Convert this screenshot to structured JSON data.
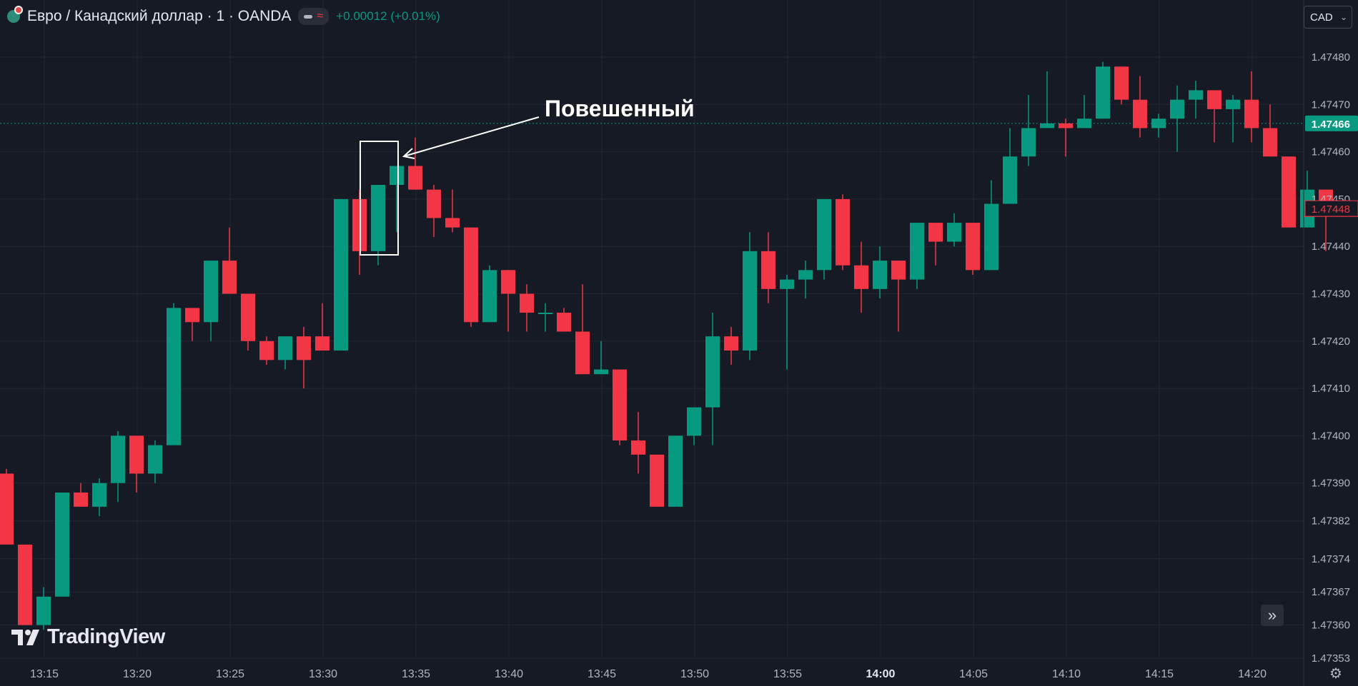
{
  "header": {
    "symbol_icon": "eur-cad-flag-icon",
    "symbol_title": "Евро / Канадский доллар · 1 · OANDA",
    "change": "+0.00012 (+0.01%)"
  },
  "currency_selector": {
    "label": "CAD"
  },
  "logo": {
    "text": "TradingView"
  },
  "colors": {
    "up": "#089981",
    "down": "#f23645",
    "background": "#161a25",
    "grid": "#232733"
  },
  "chart_data": {
    "type": "candlestick",
    "price_axis": {
      "ticks": [
        "1.47480",
        "1.47470",
        "1.47460",
        "1.47450",
        "1.47440",
        "1.47430",
        "1.47420",
        "1.47410",
        "1.47400",
        "1.47390",
        "1.47382",
        "1.47374",
        "1.47367",
        "1.47360",
        "1.47353"
      ],
      "last_price": "1.47466",
      "marker_price": "1.47448"
    },
    "time_axis": {
      "ticks": [
        "13:15",
        "13:20",
        "13:25",
        "13:30",
        "13:35",
        "13:40",
        "13:45",
        "13:50",
        "13:55",
        "14:00",
        "14:05",
        "14:10",
        "14:15",
        "14:20"
      ],
      "bold_tick": "14:00"
    },
    "annotation": {
      "text": "Повешенный",
      "target_time": "13:34"
    },
    "candles": [
      {
        "t": "13:13",
        "o": 1.47392,
        "h": 1.47393,
        "l": 1.47378,
        "c": 1.47377
      },
      {
        "t": "13:14",
        "o": 1.47377,
        "h": 1.47377,
        "l": 1.4736,
        "c": 1.4736
      },
      {
        "t": "13:15",
        "o": 1.4736,
        "h": 1.47368,
        "l": 1.47359,
        "c": 1.47366
      },
      {
        "t": "13:16",
        "o": 1.47366,
        "h": 1.47388,
        "l": 1.47366,
        "c": 1.47388
      },
      {
        "t": "13:17",
        "o": 1.47388,
        "h": 1.4739,
        "l": 1.47385,
        "c": 1.47385
      },
      {
        "t": "13:18",
        "o": 1.47385,
        "h": 1.47391,
        "l": 1.47383,
        "c": 1.4739
      },
      {
        "t": "13:19",
        "o": 1.4739,
        "h": 1.47401,
        "l": 1.47386,
        "c": 1.474
      },
      {
        "t": "13:20",
        "o": 1.474,
        "h": 1.474,
        "l": 1.47388,
        "c": 1.47392
      },
      {
        "t": "13:21",
        "o": 1.47392,
        "h": 1.47399,
        "l": 1.4739,
        "c": 1.47398
      },
      {
        "t": "13:22",
        "o": 1.47398,
        "h": 1.47428,
        "l": 1.47398,
        "c": 1.47427
      },
      {
        "t": "13:23",
        "o": 1.47427,
        "h": 1.47427,
        "l": 1.4742,
        "c": 1.47424
      },
      {
        "t": "13:24",
        "o": 1.47424,
        "h": 1.47437,
        "l": 1.4742,
        "c": 1.47437
      },
      {
        "t": "13:25",
        "o": 1.47437,
        "h": 1.47444,
        "l": 1.4743,
        "c": 1.4743
      },
      {
        "t": "13:26",
        "o": 1.4743,
        "h": 1.4743,
        "l": 1.47418,
        "c": 1.4742
      },
      {
        "t": "13:27",
        "o": 1.4742,
        "h": 1.47421,
        "l": 1.47415,
        "c": 1.47416
      },
      {
        "t": "13:28",
        "o": 1.47416,
        "h": 1.47421,
        "l": 1.47414,
        "c": 1.47421
      },
      {
        "t": "13:29",
        "o": 1.47421,
        "h": 1.47423,
        "l": 1.4741,
        "c": 1.47416
      },
      {
        "t": "13:30",
        "o": 1.47421,
        "h": 1.47428,
        "l": 1.47418,
        "c": 1.47418
      },
      {
        "t": "13:31",
        "o": 1.47418,
        "h": 1.4745,
        "l": 1.47418,
        "c": 1.4745
      },
      {
        "t": "13:32",
        "o": 1.4745,
        "h": 1.47452,
        "l": 1.47434,
        "c": 1.47439
      },
      {
        "t": "13:33",
        "o": 1.47439,
        "h": 1.47453,
        "l": 1.47436,
        "c": 1.47453
      },
      {
        "t": "13:34a",
        "o": 1.47453,
        "h": 1.47457,
        "l": 1.47443,
        "c": 1.47457
      },
      {
        "t": "13:34",
        "o": 1.47457,
        "h": 1.47463,
        "l": 1.47452,
        "c": 1.47452
      },
      {
        "t": "13:35",
        "o": 1.47452,
        "h": 1.47453,
        "l": 1.47442,
        "c": 1.47446
      },
      {
        "t": "13:36",
        "o": 1.47446,
        "h": 1.47452,
        "l": 1.47443,
        "c": 1.47444
      },
      {
        "t": "13:37",
        "o": 1.47444,
        "h": 1.47444,
        "l": 1.47423,
        "c": 1.47424
      },
      {
        "t": "13:38",
        "o": 1.47424,
        "h": 1.47436,
        "l": 1.47424,
        "c": 1.47435
      },
      {
        "t": "13:39",
        "o": 1.47435,
        "h": 1.47435,
        "l": 1.47422,
        "c": 1.4743
      },
      {
        "t": "13:40",
        "o": 1.4743,
        "h": 1.47432,
        "l": 1.47422,
        "c": 1.47426
      },
      {
        "t": "13:41",
        "o": 1.47426,
        "h": 1.47428,
        "l": 1.47422,
        "c": 1.47426
      },
      {
        "t": "13:42",
        "o": 1.47426,
        "h": 1.47427,
        "l": 1.47422,
        "c": 1.47422
      },
      {
        "t": "13:43",
        "o": 1.47422,
        "h": 1.47432,
        "l": 1.47413,
        "c": 1.47413
      },
      {
        "t": "13:44",
        "o": 1.47413,
        "h": 1.4742,
        "l": 1.47413,
        "c": 1.47414
      },
      {
        "t": "13:45",
        "o": 1.47414,
        "h": 1.47414,
        "l": 1.47398,
        "c": 1.47399
      },
      {
        "t": "13:46",
        "o": 1.47399,
        "h": 1.47405,
        "l": 1.47392,
        "c": 1.47396
      },
      {
        "t": "13:47",
        "o": 1.47396,
        "h": 1.47396,
        "l": 1.47385,
        "c": 1.47385
      },
      {
        "t": "13:48",
        "o": 1.47385,
        "h": 1.474,
        "l": 1.47385,
        "c": 1.474
      },
      {
        "t": "13:49",
        "o": 1.474,
        "h": 1.47406,
        "l": 1.47398,
        "c": 1.47406
      },
      {
        "t": "13:50",
        "o": 1.47406,
        "h": 1.47426,
        "l": 1.47398,
        "c": 1.47421
      },
      {
        "t": "13:51",
        "o": 1.47421,
        "h": 1.47423,
        "l": 1.47415,
        "c": 1.47418
      },
      {
        "t": "13:52",
        "o": 1.47418,
        "h": 1.47443,
        "l": 1.47416,
        "c": 1.47439
      },
      {
        "t": "13:53",
        "o": 1.47439,
        "h": 1.47443,
        "l": 1.47428,
        "c": 1.47431
      },
      {
        "t": "13:54",
        "o": 1.47431,
        "h": 1.47434,
        "l": 1.47414,
        "c": 1.47433
      },
      {
        "t": "13:55",
        "o": 1.47433,
        "h": 1.47437,
        "l": 1.47429,
        "c": 1.47435
      },
      {
        "t": "13:56",
        "o": 1.47435,
        "h": 1.4745,
        "l": 1.47433,
        "c": 1.4745
      },
      {
        "t": "13:57",
        "o": 1.4745,
        "h": 1.47451,
        "l": 1.47435,
        "c": 1.47436
      },
      {
        "t": "13:58",
        "o": 1.47436,
        "h": 1.47441,
        "l": 1.47426,
        "c": 1.47431
      },
      {
        "t": "13:59",
        "o": 1.47431,
        "h": 1.4744,
        "l": 1.47429,
        "c": 1.47437
      },
      {
        "t": "14:00",
        "o": 1.47437,
        "h": 1.47437,
        "l": 1.47422,
        "c": 1.47433
      },
      {
        "t": "14:01",
        "o": 1.47433,
        "h": 1.47445,
        "l": 1.47431,
        "c": 1.47445
      },
      {
        "t": "14:02",
        "o": 1.47445,
        "h": 1.47445,
        "l": 1.47436,
        "c": 1.47441
      },
      {
        "t": "14:03",
        "o": 1.47441,
        "h": 1.47447,
        "l": 1.4744,
        "c": 1.47445
      },
      {
        "t": "14:04",
        "o": 1.47445,
        "h": 1.47445,
        "l": 1.47434,
        "c": 1.47435
      },
      {
        "t": "14:05",
        "o": 1.47435,
        "h": 1.47454,
        "l": 1.47435,
        "c": 1.47449
      },
      {
        "t": "14:06",
        "o": 1.47449,
        "h": 1.47465,
        "l": 1.47449,
        "c": 1.47459
      },
      {
        "t": "14:07",
        "o": 1.47459,
        "h": 1.47472,
        "l": 1.47457,
        "c": 1.47465
      },
      {
        "t": "14:08",
        "o": 1.47465,
        "h": 1.47477,
        "l": 1.47465,
        "c": 1.47466
      },
      {
        "t": "14:09",
        "o": 1.47466,
        "h": 1.47467,
        "l": 1.47459,
        "c": 1.47465
      },
      {
        "t": "14:10",
        "o": 1.47465,
        "h": 1.47472,
        "l": 1.47465,
        "c": 1.47467
      },
      {
        "t": "14:11",
        "o": 1.47467,
        "h": 1.47479,
        "l": 1.47467,
        "c": 1.47478
      },
      {
        "t": "14:12",
        "o": 1.47478,
        "h": 1.47478,
        "l": 1.4747,
        "c": 1.47471
      },
      {
        "t": "14:13",
        "o": 1.47471,
        "h": 1.47476,
        "l": 1.47463,
        "c": 1.47465
      },
      {
        "t": "14:14",
        "o": 1.47465,
        "h": 1.47468,
        "l": 1.47463,
        "c": 1.47467
      },
      {
        "t": "14:15",
        "o": 1.47467,
        "h": 1.47474,
        "l": 1.4746,
        "c": 1.47471
      },
      {
        "t": "14:16",
        "o": 1.47471,
        "h": 1.47475,
        "l": 1.47467,
        "c": 1.47473
      },
      {
        "t": "14:17",
        "o": 1.47473,
        "h": 1.47473,
        "l": 1.47462,
        "c": 1.47469
      },
      {
        "t": "14:18",
        "o": 1.47469,
        "h": 1.47472,
        "l": 1.47462,
        "c": 1.47471
      },
      {
        "t": "14:19",
        "o": 1.47471,
        "h": 1.47477,
        "l": 1.47462,
        "c": 1.47465
      },
      {
        "t": "14:20",
        "o": 1.47465,
        "h": 1.4747,
        "l": 1.47459,
        "c": 1.47459
      },
      {
        "t": "14:21",
        "o": 1.47459,
        "h": 1.47459,
        "l": 1.47444,
        "c": 1.47444
      },
      {
        "t": "14:22",
        "o": 1.47444,
        "h": 1.47456,
        "l": 1.47444,
        "c": 1.47452
      },
      {
        "t": "14:23",
        "o": 1.47452,
        "h": 1.47452,
        "l": 1.47439,
        "c": 1.47448
      }
    ]
  }
}
